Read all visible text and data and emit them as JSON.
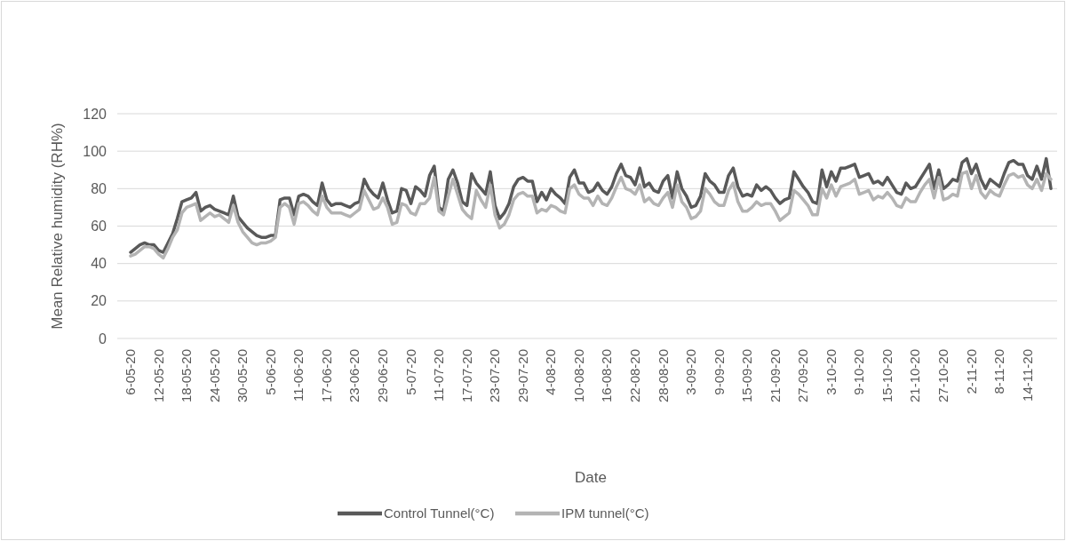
{
  "chart_data": {
    "type": "line",
    "xlabel": "Date",
    "ylabel": "Mean Relative humidity (RH%)",
    "categories": [
      "6-05-20",
      null,
      null,
      null,
      null,
      null,
      "12-05-20",
      null,
      null,
      null,
      null,
      null,
      "18-05-20",
      null,
      null,
      null,
      null,
      null,
      "24-05-20",
      null,
      null,
      null,
      null,
      null,
      "30-05-20",
      null,
      null,
      null,
      null,
      null,
      "5-06-20",
      null,
      null,
      null,
      null,
      null,
      "11-06-20",
      null,
      null,
      null,
      null,
      null,
      "17-06-20",
      null,
      null,
      null,
      null,
      null,
      "23-06-20",
      null,
      null,
      null,
      null,
      null,
      "29-06-20",
      null,
      null,
      null,
      null,
      null,
      "5-07-20",
      null,
      null,
      null,
      null,
      null,
      "11-07-20",
      null,
      null,
      null,
      null,
      null,
      "17-07-20",
      null,
      null,
      null,
      null,
      null,
      "23-07-20",
      null,
      null,
      null,
      null,
      null,
      "29-07-20",
      null,
      null,
      null,
      null,
      null,
      "4-08-20",
      null,
      null,
      null,
      null,
      null,
      "10-08-20",
      null,
      null,
      null,
      null,
      null,
      "16-08-20",
      null,
      null,
      null,
      null,
      null,
      "22-08-20",
      null,
      null,
      null,
      null,
      null,
      "28-08-20",
      null,
      null,
      null,
      null,
      null,
      "3-09-20",
      null,
      null,
      null,
      null,
      null,
      "9-09-20",
      null,
      null,
      null,
      null,
      null,
      "15-09-20",
      null,
      null,
      null,
      null,
      null,
      "21-09-20",
      null,
      null,
      null,
      null,
      null,
      "27-09-20",
      null,
      null,
      null,
      null,
      null,
      "3-10-20",
      null,
      null,
      null,
      null,
      null,
      "9-10-20",
      null,
      null,
      null,
      null,
      null,
      "15-10-20",
      null,
      null,
      null,
      null,
      null,
      "21-10-20",
      null,
      null,
      null,
      null,
      null,
      "27-10-20",
      null,
      null,
      null,
      null,
      null,
      "2-11-20",
      null,
      null,
      null,
      null,
      null,
      "8-11-20",
      null,
      null,
      null,
      null,
      null,
      "14-11-20",
      null,
      null,
      null,
      null,
      null
    ],
    "series": [
      {
        "name": "Control Tunnel(°C)",
        "color": "#595959",
        "values": [
          46,
          48,
          50,
          51,
          50,
          50,
          47,
          46,
          51,
          56,
          64,
          73,
          74,
          75,
          78,
          68,
          70,
          71,
          69,
          68,
          67,
          66,
          76,
          65,
          62,
          59,
          57,
          55,
          54,
          54,
          55,
          55,
          74,
          75,
          75,
          66,
          76,
          77,
          76,
          73,
          71,
          83,
          74,
          71,
          72,
          72,
          71,
          70,
          72,
          73,
          85,
          80,
          77,
          75,
          83,
          74,
          67,
          68,
          80,
          79,
          72,
          81,
          79,
          76,
          87,
          92,
          70,
          68,
          85,
          90,
          83,
          73,
          71,
          88,
          83,
          80,
          77,
          89,
          71,
          64,
          67,
          72,
          81,
          85,
          86,
          84,
          84,
          73,
          78,
          74,
          80,
          77,
          75,
          72,
          86,
          90,
          83,
          83,
          78,
          79,
          83,
          79,
          77,
          81,
          88,
          93,
          87,
          86,
          82,
          91,
          81,
          83,
          79,
          78,
          84,
          87,
          75,
          89,
          80,
          76,
          70,
          71,
          76,
          88,
          84,
          82,
          78,
          78,
          87,
          91,
          81,
          76,
          77,
          76,
          82,
          79,
          81,
          79,
          75,
          72,
          74,
          75,
          89,
          85,
          81,
          78,
          73,
          72,
          90,
          81,
          89,
          84,
          91,
          91,
          92,
          93,
          86,
          87,
          88,
          83,
          84,
          82,
          86,
          82,
          78,
          77,
          83,
          80,
          81,
          85,
          89,
          93,
          80,
          90,
          80,
          82,
          85,
          84,
          94,
          96,
          88,
          93,
          85,
          80,
          85,
          83,
          81,
          88,
          94,
          95,
          93,
          93,
          87,
          85,
          92,
          85,
          96,
          80
        ]
      },
      {
        "name": "IPM tunnel(°C)",
        "color": "#b4b4b4",
        "values": [
          44,
          45,
          47,
          49,
          49,
          48,
          45,
          43,
          48,
          54,
          58,
          67,
          70,
          71,
          72,
          63,
          65,
          67,
          65,
          66,
          64,
          62,
          71,
          62,
          57,
          54,
          51,
          50,
          51,
          51,
          52,
          54,
          70,
          72,
          70,
          61,
          72,
          73,
          71,
          68,
          66,
          76,
          70,
          67,
          67,
          67,
          66,
          65,
          67,
          69,
          79,
          74,
          69,
          70,
          75,
          70,
          61,
          62,
          72,
          71,
          67,
          66,
          72,
          72,
          75,
          86,
          68,
          66,
          76,
          85,
          77,
          69,
          66,
          64,
          79,
          74,
          70,
          82,
          66,
          59,
          61,
          66,
          74,
          77,
          78,
          76,
          76,
          67,
          69,
          68,
          71,
          70,
          68,
          67,
          80,
          82,
          77,
          75,
          75,
          71,
          76,
          72,
          71,
          75,
          81,
          86,
          80,
          79,
          77,
          82,
          73,
          75,
          72,
          71,
          75,
          78,
          70,
          82,
          73,
          70,
          64,
          65,
          68,
          80,
          77,
          73,
          71,
          71,
          79,
          83,
          73,
          68,
          68,
          70,
          73,
          71,
          72,
          72,
          68,
          63,
          65,
          67,
          79,
          77,
          74,
          71,
          66,
          66,
          80,
          75,
          82,
          76,
          81,
          82,
          83,
          85,
          77,
          78,
          79,
          74,
          76,
          75,
          78,
          75,
          71,
          70,
          75,
          73,
          73,
          78,
          82,
          85,
          75,
          86,
          74,
          75,
          77,
          76,
          88,
          89,
          80,
          87,
          78,
          75,
          79,
          77,
          76,
          82,
          87,
          88,
          86,
          87,
          82,
          80,
          85,
          79,
          88,
          85
        ]
      }
    ],
    "ylim": [
      0,
      120
    ],
    "yticks": [
      0,
      20,
      40,
      60,
      80,
      100,
      120
    ],
    "grid": "y",
    "legend": "bottom",
    "line_style": "solid",
    "marker": "none"
  }
}
